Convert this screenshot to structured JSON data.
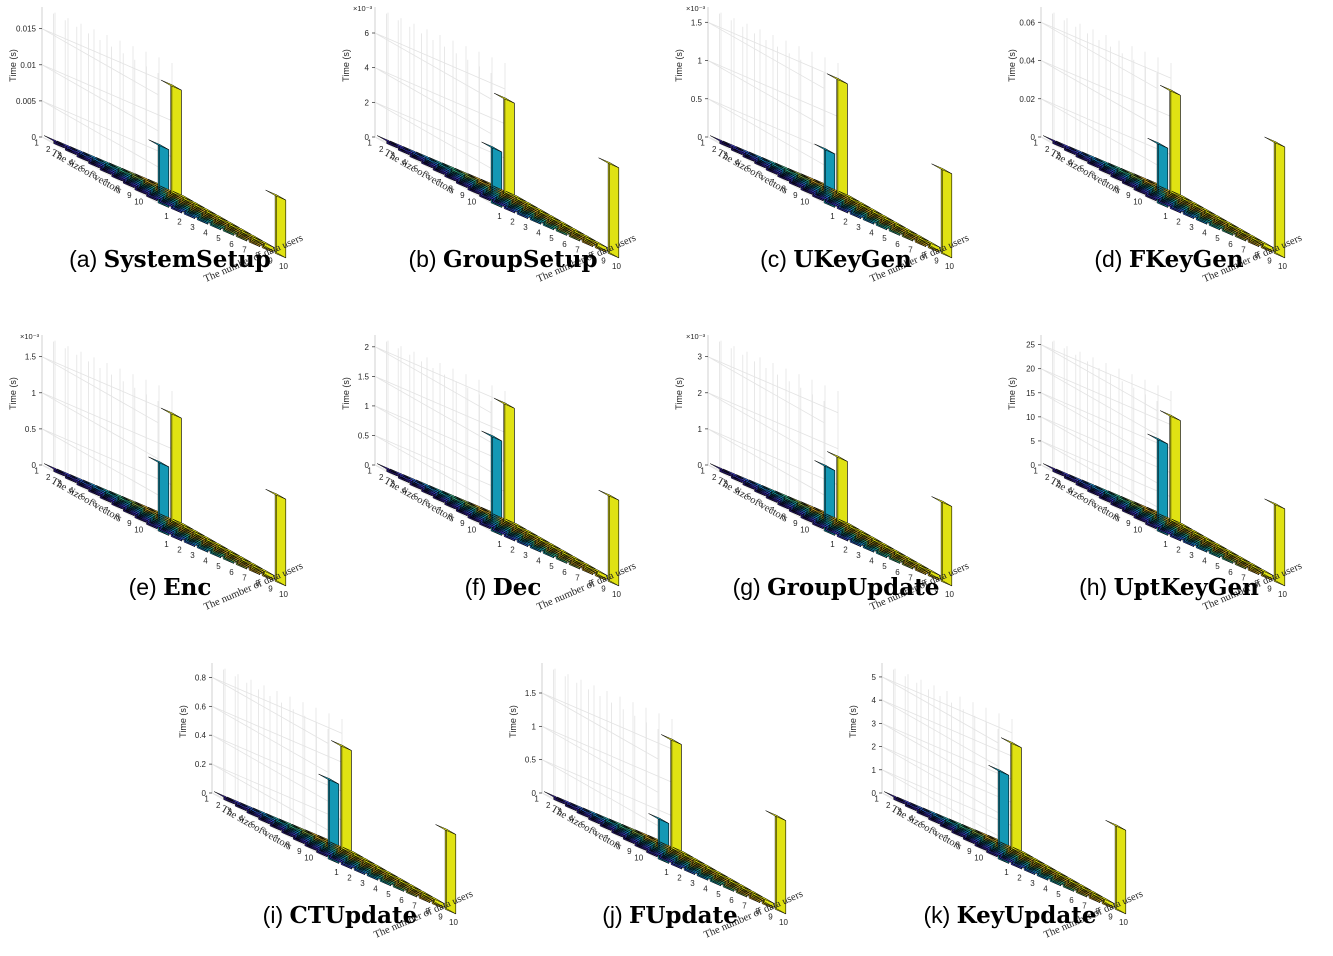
{
  "figure": {
    "panels": [
      {
        "letter": "(a)",
        "name": "SystemSetup"
      },
      {
        "letter": "(b)",
        "name": "GroupSetup"
      },
      {
        "letter": "(c)",
        "name": "UKeyGen"
      },
      {
        "letter": "(d)",
        "name": "FKeyGen"
      },
      {
        "letter": "(e)",
        "name": "Enc"
      },
      {
        "letter": "(f)",
        "name": "Dec"
      },
      {
        "letter": "(g)",
        "name": "GroupUpdate"
      },
      {
        "letter": "(h)",
        "name": "UptKeyGen"
      },
      {
        "letter": "(i)",
        "name": "CTUpdate"
      },
      {
        "letter": "(j)",
        "name": "FUpdate"
      },
      {
        "letter": "(k)",
        "name": "KeyUpdate"
      }
    ]
  },
  "colors": {
    "colormap": [
      "#3e26a8",
      "#4744e8",
      "#3b74f8",
      "#1f9ee8",
      "#1fbcc6",
      "#42ca9a",
      "#a1c54d",
      "#e9ba30",
      "#fbd52a",
      "#f9fb15"
    ],
    "axis": "#262626",
    "grid": "#e3e3e3"
  },
  "chart_data": [
    {
      "type": "bar3d",
      "panel": "a",
      "title": "SystemSetup",
      "xlabel": "The number of data users",
      "ylabel": "The size of vectors",
      "zlabel": "Time (s)",
      "categories": [
        1,
        2,
        3,
        4,
        5,
        6,
        7,
        8,
        9,
        10
      ],
      "ylim": [
        0,
        0.018
      ],
      "yticks": [
        0,
        0.005,
        0.01,
        0.015
      ],
      "ytick_labels": [
        "0",
        "0.005",
        "0.01",
        "0.015"
      ],
      "exponent": "",
      "bars": [
        {
          "users": 1,
          "vectors": 10,
          "value": 0.008,
          "color": "cyan"
        },
        {
          "users": 10,
          "vectors": 1,
          "value": 0.015,
          "color": "yellow"
        },
        {
          "users": 10,
          "vectors": 10,
          "value": 0.008,
          "color": "yellow"
        }
      ]
    },
    {
      "type": "bar3d",
      "panel": "b",
      "title": "GroupSetup",
      "xlabel": "The number of data users",
      "ylabel": "The size of vectors",
      "zlabel": "Time (s)",
      "categories": [
        1,
        2,
        3,
        4,
        5,
        6,
        7,
        8,
        9,
        10
      ],
      "ylim": [
        0,
        0.0075
      ],
      "yticks": [
        0,
        0.002,
        0.004,
        0.006
      ],
      "ytick_labels": [
        "0",
        "2",
        "4",
        "6"
      ],
      "exponent": "×10⁻³",
      "bars": [
        {
          "users": 1,
          "vectors": 10,
          "value": 0.0032,
          "color": "cyan"
        },
        {
          "users": 10,
          "vectors": 1,
          "value": 0.0055,
          "color": "yellow"
        },
        {
          "users": 10,
          "vectors": 10,
          "value": 0.0052,
          "color": "yellow"
        }
      ]
    },
    {
      "type": "bar3d",
      "panel": "c",
      "title": "UKeyGen",
      "xlabel": "The number of data users",
      "ylabel": "The size of vectors",
      "zlabel": "Time (s)",
      "categories": [
        1,
        2,
        3,
        4,
        5,
        6,
        7,
        8,
        9,
        10
      ],
      "ylim": [
        0,
        0.0017
      ],
      "yticks": [
        0,
        0.0005,
        0.001,
        0.0015
      ],
      "ytick_labels": [
        "0",
        "0.5",
        "1",
        "1.5"
      ],
      "exponent": "×10⁻³",
      "bars": [
        {
          "users": 1,
          "vectors": 10,
          "value": 0.0007,
          "color": "cyan"
        },
        {
          "users": 10,
          "vectors": 1,
          "value": 0.0015,
          "color": "yellow"
        },
        {
          "users": 10,
          "vectors": 10,
          "value": 0.0011,
          "color": "yellow"
        }
      ]
    },
    {
      "type": "bar3d",
      "panel": "d",
      "title": "FKeyGen",
      "xlabel": "The number of data users",
      "ylabel": "The size of vectors",
      "zlabel": "Time (s)",
      "categories": [
        1,
        2,
        3,
        4,
        5,
        6,
        7,
        8,
        9,
        10
      ],
      "ylim": [
        0,
        0.068
      ],
      "yticks": [
        0,
        0.02,
        0.04,
        0.06
      ],
      "ytick_labels": [
        "0",
        "0.02",
        "0.04",
        "0.06"
      ],
      "exponent": "",
      "bars": [
        {
          "users": 1,
          "vectors": 10,
          "value": 0.031,
          "color": "cyan"
        },
        {
          "users": 10,
          "vectors": 1,
          "value": 0.054,
          "color": "yellow"
        },
        {
          "users": 10,
          "vectors": 10,
          "value": 0.058,
          "color": "yellow"
        }
      ]
    },
    {
      "type": "bar3d",
      "panel": "e",
      "title": "Enc",
      "xlabel": "The number of data users",
      "ylabel": "The size of vectors",
      "zlabel": "Time (s)",
      "categories": [
        1,
        2,
        3,
        4,
        5,
        6,
        7,
        8,
        9,
        10
      ],
      "ylim": [
        0,
        0.0018
      ],
      "yticks": [
        0,
        0.0005,
        0.001,
        0.0015
      ],
      "ytick_labels": [
        "0",
        "0.5",
        "1",
        "1.5"
      ],
      "exponent": "×10⁻³",
      "bars": [
        {
          "users": 1,
          "vectors": 10,
          "value": 0.00095,
          "color": "cyan"
        },
        {
          "users": 10,
          "vectors": 1,
          "value": 0.0015,
          "color": "yellow"
        },
        {
          "users": 10,
          "vectors": 10,
          "value": 0.0012,
          "color": "yellow"
        }
      ]
    },
    {
      "type": "bar3d",
      "panel": "f",
      "title": "Dec",
      "xlabel": "The number of data users",
      "ylabel": "The size of vectors",
      "zlabel": "Time (s)",
      "categories": [
        1,
        2,
        3,
        4,
        5,
        6,
        7,
        8,
        9,
        10
      ],
      "ylim": [
        0,
        2.2
      ],
      "yticks": [
        0,
        0.5,
        1,
        1.5,
        2
      ],
      "ytick_labels": [
        "0",
        "0.5",
        "1",
        "1.5",
        "2"
      ],
      "exponent": "",
      "bars": [
        {
          "users": 1,
          "vectors": 10,
          "value": 1.6,
          "color": "cyan"
        },
        {
          "users": 10,
          "vectors": 1,
          "value": 2.0,
          "color": "yellow"
        },
        {
          "users": 10,
          "vectors": 10,
          "value": 1.45,
          "color": "yellow"
        }
      ]
    },
    {
      "type": "bar3d",
      "panel": "g",
      "title": "GroupUpdate",
      "xlabel": "The number of data users",
      "ylabel": "The size of vectors",
      "zlabel": "Time (s)",
      "categories": [
        1,
        2,
        3,
        4,
        5,
        6,
        7,
        8,
        9,
        10
      ],
      "ylim": [
        0,
        0.0036
      ],
      "yticks": [
        0,
        0.001,
        0.002,
        0.003
      ],
      "ytick_labels": [
        "0",
        "1",
        "2",
        "3"
      ],
      "exponent": "×10⁻³",
      "bars": [
        {
          "users": 1,
          "vectors": 10,
          "value": 0.0018,
          "color": "cyan"
        },
        {
          "users": 10,
          "vectors": 1,
          "value": 0.0018,
          "color": "yellow"
        },
        {
          "users": 10,
          "vectors": 10,
          "value": 0.0022,
          "color": "yellow"
        }
      ]
    },
    {
      "type": "bar3d",
      "panel": "h",
      "title": "UptKeyGen",
      "xlabel": "The number of data users",
      "ylabel": "The size of vectors",
      "zlabel": "Time (s)",
      "categories": [
        1,
        2,
        3,
        4,
        5,
        6,
        7,
        8,
        9,
        10
      ],
      "ylim": [
        0,
        27
      ],
      "yticks": [
        0,
        5,
        10,
        15,
        20,
        25
      ],
      "ytick_labels": [
        "0",
        "5",
        "10",
        "15",
        "20",
        "25"
      ],
      "exponent": "",
      "bars": [
        {
          "users": 1,
          "vectors": 10,
          "value": 19,
          "color": "cyan"
        },
        {
          "users": 10,
          "vectors": 1,
          "value": 22,
          "color": "yellow"
        },
        {
          "users": 10,
          "vectors": 10,
          "value": 16,
          "color": "yellow"
        }
      ]
    },
    {
      "type": "bar3d",
      "panel": "i",
      "title": "CTUpdate",
      "xlabel": "The number of data users",
      "ylabel": "The size of vectors",
      "zlabel": "Time (s)",
      "categories": [
        1,
        2,
        3,
        4,
        5,
        6,
        7,
        8,
        9,
        10
      ],
      "ylim": [
        0,
        0.9
      ],
      "yticks": [
        0,
        0.2,
        0.4,
        0.6,
        0.8
      ],
      "ytick_labels": [
        "0",
        "0.2",
        "0.4",
        "0.6",
        "0.8"
      ],
      "exponent": "",
      "bars": [
        {
          "users": 1,
          "vectors": 10,
          "value": 0.55,
          "color": "cyan"
        },
        {
          "users": 10,
          "vectors": 1,
          "value": 0.72,
          "color": "yellow"
        },
        {
          "users": 10,
          "vectors": 10,
          "value": 0.55,
          "color": "yellow"
        }
      ]
    },
    {
      "type": "bar3d",
      "panel": "j",
      "title": "FUpdate",
      "xlabel": "The number of data users",
      "ylabel": "The size of vectors",
      "zlabel": "Time (s)",
      "categories": [
        1,
        2,
        3,
        4,
        5,
        6,
        7,
        8,
        9,
        10
      ],
      "ylim": [
        0,
        1.95
      ],
      "yticks": [
        0,
        0.5,
        1,
        1.5
      ],
      "ytick_labels": [
        "0",
        "0.5",
        "1",
        "1.5"
      ],
      "exponent": "",
      "bars": [
        {
          "users": 1,
          "vectors": 10,
          "value": 0.6,
          "color": "cyan"
        },
        {
          "users": 10,
          "vectors": 1,
          "value": 1.65,
          "color": "yellow"
        },
        {
          "users": 10,
          "vectors": 10,
          "value": 1.4,
          "color": "yellow"
        }
      ]
    },
    {
      "type": "bar3d",
      "panel": "k",
      "title": "KeyUpdate",
      "xlabel": "The number of data users",
      "ylabel": "The size of vectors",
      "zlabel": "Time (s)",
      "categories": [
        1,
        2,
        3,
        4,
        5,
        6,
        7,
        8,
        9,
        10
      ],
      "ylim": [
        0,
        5.6
      ],
      "yticks": [
        0,
        1,
        2,
        3,
        4,
        5
      ],
      "ytick_labels": [
        "0",
        "1",
        "2",
        "3",
        "4",
        "5"
      ],
      "exponent": "",
      "bars": [
        {
          "users": 1,
          "vectors": 10,
          "value": 3.8,
          "color": "cyan"
        },
        {
          "users": 10,
          "vectors": 1,
          "value": 4.6,
          "color": "yellow"
        },
        {
          "users": 10,
          "vectors": 10,
          "value": 3.6,
          "color": "yellow"
        }
      ]
    }
  ]
}
